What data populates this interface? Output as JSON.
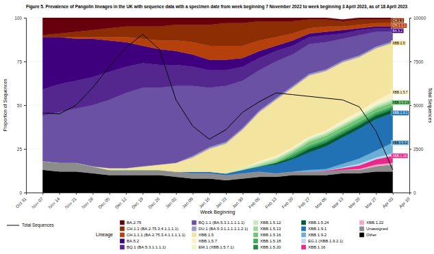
{
  "chart_data": {
    "type": "area",
    "title": "Figure 5. Prevalence of Pangolin lineages in the UK with sequence data with a specimen date from week beginning 7 November 2022 to week beginning 3 April 2023, as of 18 April 2023",
    "xlabel": "Week Beginning",
    "ylabel": "Proportion of Sequences",
    "y2label": "Total Sequences",
    "legend_title": "Lineage",
    "categories": [
      "Oct 31",
      "Nov 07",
      "Nov 14",
      "Nov 21",
      "Nov 28",
      "Dec 05",
      "Dec 12",
      "Dec 19",
      "Dec 26",
      "Jan 02",
      "Jan 09",
      "Jan 16",
      "Jan 23",
      "Jan 30",
      "Feb 06",
      "Feb 13",
      "Feb 20",
      "Feb 27",
      "Mar 06",
      "Mar 13",
      "Mar 20",
      "Mar 27",
      "Apr 03",
      "Apr 10"
    ],
    "ylim": [
      0,
      100
    ],
    "yticks": [
      0,
      25,
      50,
      75,
      100
    ],
    "y2lim": [
      0,
      10000
    ],
    "y2ticks": [
      0,
      2500,
      5000,
      7500,
      10000
    ],
    "stacked": true,
    "grid": true,
    "legend": "bottom",
    "series": [
      {
        "name": "BA.2.75",
        "color": "#67000d",
        "values": [
          null,
          10,
          9,
          8,
          7,
          6,
          5,
          5,
          5,
          4,
          4,
          4,
          3,
          3,
          2,
          2,
          2,
          1,
          1,
          1,
          1,
          1,
          1,
          null
        ]
      },
      {
        "name": "CH.1.1 (BA.2.75.3.4.1.1.1.1)",
        "label": "CH.1.1",
        "color": "#8c2d04",
        "values": [
          null,
          1,
          2,
          3,
          4,
          5,
          6,
          7,
          8,
          9,
          10,
          12,
          13,
          13,
          11,
          9,
          7,
          5,
          4,
          3,
          3,
          2,
          2,
          null
        ]
      },
      {
        "name": "CH.1.1.1 (BA.2.75.3.4.1.1.1.1.1)",
        "label": "CH.1.1.1",
        "color": "#b5400b",
        "values": [
          null,
          0,
          0,
          1,
          1,
          2,
          3,
          4,
          5,
          6,
          7,
          8,
          8,
          7,
          6,
          5,
          4,
          3,
          3,
          2,
          2,
          2,
          2,
          null
        ]
      },
      {
        "name": "BA.5.2",
        "label": "BA.5.2",
        "color": "#3f007d",
        "values": [
          null,
          30,
          27,
          24,
          22,
          18,
          14,
          10,
          9,
          8,
          7,
          6,
          6,
          5,
          4,
          3,
          3,
          2,
          2,
          2,
          1,
          1,
          1,
          null
        ]
      },
      {
        "name": "BQ.1 (BA.5.3.1.1.1.1)",
        "color": "#54278f",
        "values": [
          null,
          15,
          16,
          16,
          16,
          16,
          15,
          14,
          13,
          12,
          11,
          10,
          9,
          8,
          7,
          6,
          5,
          4,
          4,
          3,
          3,
          2,
          2,
          null
        ]
      },
      {
        "name": "BQ.1.1 (BA.5.3.1.1.1.1.1)",
        "color": "#6a51a3",
        "values": [
          null,
          26,
          29,
          31,
          35,
          39,
          43,
          45,
          44,
          44,
          40,
          34,
          32,
          27,
          23,
          21,
          18,
          17,
          15.5,
          12.5,
          11.5,
          8.5,
          5.5,
          null
        ]
      },
      {
        "name": "DU.1 (BA.5.3.1.1.1.1.1.2.1)",
        "color": "#9e9ac8",
        "values": [
          null,
          0,
          0,
          0,
          0,
          0,
          0,
          0,
          0,
          0,
          1,
          1,
          1,
          1,
          1,
          1,
          1,
          1,
          1,
          1,
          1,
          1,
          1,
          null
        ]
      },
      {
        "name": "XBB.1.5",
        "label": "XBB.1.5",
        "color": "#f3e5a0",
        "values": [
          null,
          0,
          0,
          0,
          0,
          1,
          1,
          2,
          3,
          5,
          8,
          13,
          17,
          22,
          28,
          32,
          34,
          35,
          34,
          33,
          31,
          30,
          28,
          null
        ]
      },
      {
        "name": "XBB.1.5.7",
        "label": "XBB.1.5.7",
        "color": "#faf1c6",
        "values": [
          null,
          0,
          0,
          0,
          0,
          0,
          0,
          0,
          0,
          0,
          0,
          0,
          0,
          0,
          1,
          1,
          1,
          1,
          1,
          2,
          2,
          2,
          3,
          null
        ]
      },
      {
        "name": "EM.1 (XBB.1.5.7.1)",
        "color": "#eef5c8",
        "values": [
          null,
          0,
          0,
          0,
          0,
          0,
          0,
          0,
          0,
          0,
          0,
          0,
          0,
          0,
          0,
          0,
          0,
          0,
          0,
          0,
          0,
          0.5,
          1,
          null
        ]
      },
      {
        "name": "XBB.1.5.12",
        "color": "#c7e9c0",
        "values": [
          null,
          0,
          0,
          0,
          0,
          0,
          0,
          0,
          0,
          0,
          0,
          0,
          0,
          1,
          1,
          1,
          1,
          1,
          1,
          1,
          1,
          1,
          1,
          null
        ]
      },
      {
        "name": "XBB.1.5.13",
        "color": "#a1d99b",
        "values": [
          null,
          0,
          0,
          0,
          0,
          0,
          0,
          0,
          0,
          0,
          0,
          0,
          0,
          0,
          1,
          1,
          1,
          1,
          1,
          1,
          1,
          1,
          1,
          null
        ]
      },
      {
        "name": "XBB.1.5.16",
        "label": "XBB.1.5.16",
        "color": "#74c476",
        "values": [
          null,
          0,
          0,
          0,
          0,
          0,
          0,
          0,
          0,
          0,
          0,
          0,
          0,
          0,
          0,
          1,
          1,
          2,
          2,
          2,
          2,
          2,
          2,
          null
        ]
      },
      {
        "name": "XBB.1.5.18",
        "color": "#41ab5d",
        "values": [
          null,
          0,
          0,
          0,
          0,
          0,
          0,
          0,
          0,
          0,
          0,
          0,
          0,
          0,
          0,
          0,
          1,
          1,
          1,
          1,
          1,
          1,
          1,
          null
        ]
      },
      {
        "name": "XBB.1.5.20",
        "color": "#238b45",
        "values": [
          null,
          0,
          0,
          0,
          0,
          0,
          0,
          0,
          0,
          0,
          0,
          0,
          0,
          0,
          0,
          0,
          1,
          1,
          1,
          1,
          1,
          1,
          1,
          null
        ]
      },
      {
        "name": "XBB.1.5.24",
        "color": "#005a32",
        "values": [
          null,
          0,
          0,
          0,
          0,
          0,
          0,
          0,
          0,
          0,
          0,
          0,
          0,
          0,
          0,
          1,
          1,
          2,
          2,
          2,
          2,
          2,
          2,
          null
        ]
      },
      {
        "name": "XBB.1.9.1",
        "label": "XBB.1.9.1",
        "color": "#2171b5",
        "values": [
          null,
          0,
          0,
          0,
          0,
          0,
          0,
          0,
          0,
          0,
          1,
          1,
          1,
          2,
          3,
          5,
          7,
          10,
          13,
          15,
          17,
          18,
          17,
          null
        ]
      },
      {
        "name": "XBB.1.9.2",
        "label": "XBB.1.9.2",
        "color": "#6baed6",
        "values": [
          null,
          0,
          0,
          0,
          0,
          0,
          0,
          0,
          0,
          0,
          0,
          0,
          0,
          0,
          0,
          0,
          0,
          1,
          1,
          2,
          3,
          4,
          6,
          null
        ]
      },
      {
        "name": "EG.1 (XBB.1.9.2.1)",
        "color": "#bdd7ee",
        "values": [
          null,
          0,
          0,
          0,
          0,
          0,
          0,
          0,
          0,
          0,
          0,
          0,
          0,
          0,
          0,
          0,
          0,
          0,
          0,
          0.5,
          1,
          1,
          1.5,
          null
        ]
      },
      {
        "name": "XBB.1.16",
        "label": "XBB.1.16",
        "color": "#e7298a",
        "values": [
          null,
          0,
          0,
          0,
          0,
          0,
          0,
          0,
          0,
          0,
          0,
          0,
          0,
          0,
          0,
          0,
          0,
          0,
          0.5,
          1,
          2,
          3,
          4,
          null
        ]
      },
      {
        "name": "XBB.1.22",
        "color": "#f4a6c8",
        "values": [
          null,
          0,
          0,
          0,
          0,
          0,
          0,
          0,
          0,
          0,
          0,
          0,
          0,
          0,
          0,
          0,
          0,
          0,
          0,
          0,
          0.5,
          1,
          1,
          null
        ]
      },
      {
        "name": "Unassigned",
        "color": "#8c8c8c",
        "values": [
          null,
          5,
          5,
          5,
          4,
          3,
          3,
          3,
          3,
          3,
          3,
          3,
          3,
          3,
          3,
          2,
          2,
          2,
          2,
          2,
          2,
          3,
          4,
          null
        ]
      },
      {
        "name": "Other",
        "color": "#000000",
        "values": [
          null,
          13,
          12,
          12,
          11,
          10,
          10,
          10,
          10,
          9,
          8,
          8,
          7,
          8,
          9,
          9,
          10,
          10,
          10,
          11,
          11,
          12,
          12,
          null
        ]
      },
      {
        "name": "Total Sequences",
        "type": "line",
        "axis": "y2",
        "color": "#000000",
        "values": [
          null,
          4550,
          4500,
          5000,
          6000,
          7200,
          8300,
          9050,
          8200,
          5300,
          3800,
          3050,
          3600,
          4600,
          5200,
          5700,
          5600,
          5500,
          5400,
          5300,
          4900,
          3500,
          1300,
          null
        ]
      }
    ]
  }
}
